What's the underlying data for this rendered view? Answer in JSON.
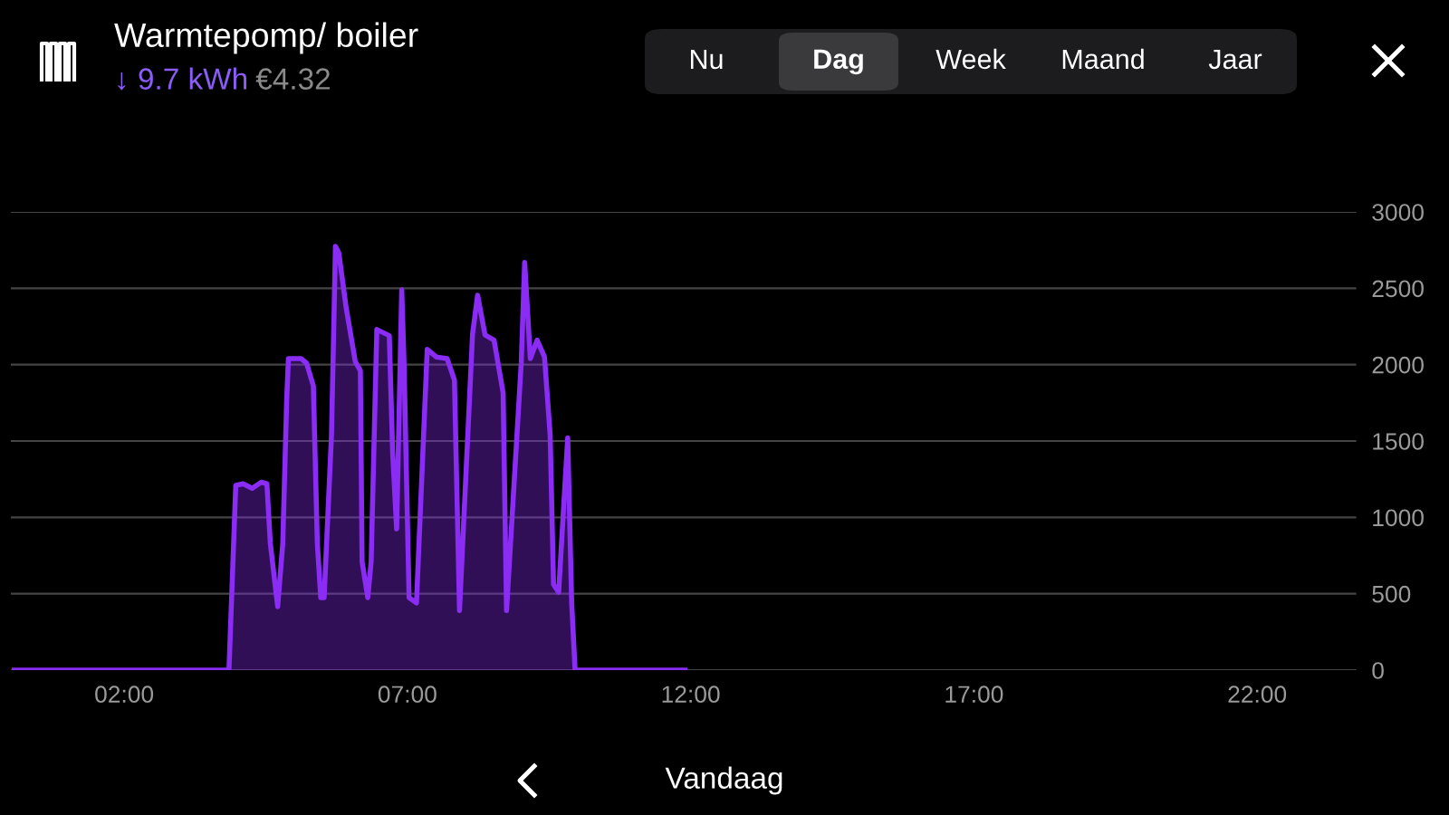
{
  "chart_data": {
    "type": "area",
    "title": "Warmtepomp/ boiler",
    "subtitle": "↓ 9.7 kWh",
    "annotations": [
      "€4.32",
      "Nu",
      "Dag",
      "Week",
      "Maand",
      "Jaar",
      "Vandaag"
    ],
    "x": [
      0.06,
      3.85,
      3.97,
      4.1,
      4.26,
      4.42,
      4.52,
      4.58,
      4.71,
      4.8,
      4.87,
      4.9,
      5.12,
      5.22,
      5.34,
      5.41,
      5.47,
      5.53,
      5.66,
      5.73,
      5.79,
      5.92,
      6.08,
      6.17,
      6.2,
      6.3,
      6.36,
      6.46,
      6.68,
      6.74,
      6.81,
      6.9,
      6.94,
      7.03,
      7.16,
      7.35,
      7.51,
      7.7,
      7.83,
      7.92,
      8.15,
      8.24,
      8.37,
      8.53,
      8.69,
      8.75,
      9.01,
      9.07,
      9.17,
      9.29,
      9.42,
      9.52,
      9.58,
      9.67,
      9.83,
      9.9,
      9.96,
      11.9
    ],
    "series": [
      {
        "color": "#8b2cf5",
        "values": [
          0,
          0,
          1210,
          1220,
          1190,
          1230,
          1220,
          830,
          415,
          830,
          1780,
          2040,
          2040,
          2010,
          1860,
          830,
          475,
          475,
          1540,
          2775,
          2730,
          2370,
          2020,
          1960,
          710,
          475,
          710,
          2230,
          2190,
          1420,
          925,
          2490,
          2020,
          475,
          440,
          2100,
          2050,
          2040,
          1900,
          390,
          2200,
          2455,
          2195,
          2160,
          1815,
          390,
          2015,
          2670,
          2040,
          2160,
          2050,
          1540,
          560,
          510,
          1520,
          440,
          0,
          0
        ]
      }
    ],
    "xlim": [
      0,
      23.75
    ],
    "xticks": [
      {
        "value": 2,
        "label": "02:00"
      },
      {
        "value": 7,
        "label": "07:00"
      },
      {
        "value": 12,
        "label": "12:00"
      },
      {
        "value": 17,
        "label": "17:00"
      },
      {
        "value": 22,
        "label": "22:00"
      }
    ],
    "ylim": [
      0,
      3000
    ],
    "yticks": [
      0,
      500,
      1000,
      1500,
      2000,
      2500,
      3000
    ],
    "grid": "y"
  }
}
